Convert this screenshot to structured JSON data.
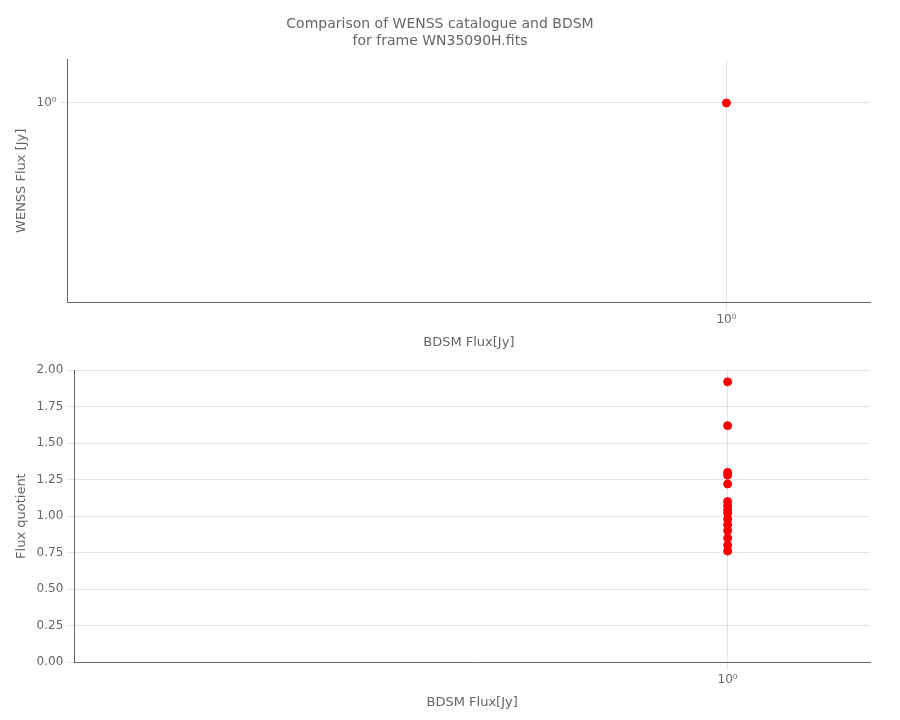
{
  "chart_data": [
    {
      "type": "scatter",
      "title": "Comparison of WENSS catalogue and BDSM\nfor frame WN35090H.fits",
      "xlabel": "BDSM Flux[Jy]",
      "ylabel": "WENSS Flux [Jy]",
      "x": [
        1.0
      ],
      "values": [
        1.0
      ],
      "color": "red",
      "log": true,
      "xlim": [
        0.3,
        1.3
      ],
      "ylim": [
        0.3,
        1.3
      ],
      "xticks": [
        {
          "value": 1.0,
          "label": "10⁰"
        }
      ],
      "yticks": [
        {
          "value": 1.0,
          "label": "10⁰"
        }
      ],
      "grid": true
    },
    {
      "type": "scatter",
      "xlabel": "BDSM Flux[Jy]",
      "ylabel": "Flux quotient",
      "x": [
        1.0,
        1.0,
        1.0,
        1.0,
        1.0,
        1.0,
        1.0,
        1.0,
        1.0,
        1.0,
        1.0,
        1.0,
        1.0,
        1.0,
        1.0
      ],
      "values": [
        1.92,
        1.62,
        1.3,
        1.28,
        1.22,
        1.1,
        1.07,
        1.04,
        1.02,
        0.98,
        0.94,
        0.9,
        0.85,
        0.8,
        0.76
      ],
      "color": "red",
      "log": "x",
      "xlim": [
        0.3,
        1.3
      ],
      "ylim": [
        0.0,
        2.0
      ],
      "xticks": [
        {
          "value": 1.0,
          "label": "10⁰"
        }
      ],
      "yticks": [
        {
          "value": 0.0,
          "label": "0.00"
        },
        0.25,
        {
          "value": 0.5,
          "label": "0.50"
        },
        0.75,
        {
          "value": 1.0,
          "label": "1.00"
        },
        1.25,
        {
          "value": 1.5,
          "label": "1.50"
        },
        1.75,
        {
          "value": 2.0,
          "label": "2.00"
        }
      ],
      "grid": true
    }
  ]
}
